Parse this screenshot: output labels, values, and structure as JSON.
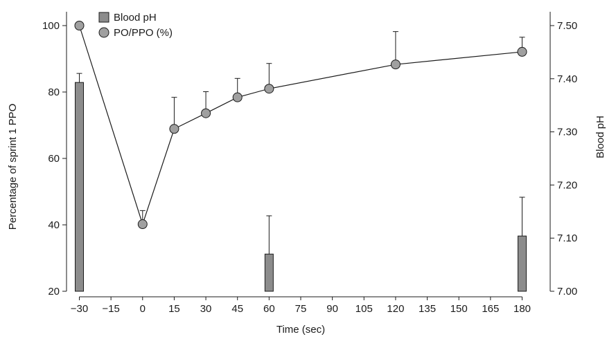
{
  "chart_data": {
    "type": "bar+line",
    "x_label": "Time (sec)",
    "y_left_label": "Percentage of sprint 1 PPO",
    "y_right_label": "Blood pH",
    "x_range": [
      -30,
      180
    ],
    "x_ticks": [
      -30,
      -15,
      0,
      15,
      30,
      45,
      60,
      75,
      90,
      105,
      120,
      135,
      150,
      165,
      180
    ],
    "x_tick_labels": [
      "−30",
      "−15",
      "0",
      "15",
      "30",
      "45",
      "60",
      "75",
      "90",
      "105",
      "120",
      "135",
      "150",
      "165",
      "180"
    ],
    "y_left_range": [
      20,
      100
    ],
    "y_left_ticks": [
      20,
      40,
      60,
      80,
      100
    ],
    "y_left_tick_labels": [
      "20",
      "40",
      "60",
      "80",
      "100"
    ],
    "y_right_range": [
      7.0,
      7.5
    ],
    "y_right_ticks": [
      7.0,
      7.1,
      7.2,
      7.3,
      7.4,
      7.5
    ],
    "y_right_tick_labels": [
      "7.00",
      "7.10",
      "7.20",
      "7.30",
      "7.40",
      "7.50"
    ],
    "legend": [
      {
        "label": "Blood pH",
        "marker": "square"
      },
      {
        "label": "PO/PPO (%)",
        "marker": "circle"
      }
    ],
    "legend_position": "top-left",
    "grid": false,
    "colors": {
      "bar": "#8c8c8c",
      "point": "#a0a0a0",
      "line": "#1a1a1a"
    },
    "series": [
      {
        "name": "Blood pH",
        "kind": "bar",
        "axis": "right",
        "x": [
          -30,
          60,
          180
        ],
        "values": [
          7.393,
          7.07,
          7.104
        ],
        "error_up": [
          0.017,
          0.072,
          0.073
        ]
      },
      {
        "name": "PO/PPO (%)",
        "kind": "line",
        "axis": "left",
        "x": [
          -30,
          0,
          15,
          30,
          45,
          60,
          120,
          180
        ],
        "values": [
          100,
          40.2,
          68.9,
          73.6,
          78.4,
          81.0,
          88.3,
          92.1
        ],
        "error_up": [
          0,
          4.1,
          9.5,
          6.5,
          5.7,
          7.6,
          9.9,
          4.4
        ]
      }
    ]
  }
}
